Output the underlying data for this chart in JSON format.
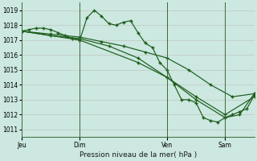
{
  "xlabel": "Pression niveau de la mer( hPa )",
  "bg_color": "#cce8e0",
  "grid_color": "#b8d8d0",
  "line_color": "#1a5c1a",
  "ylim": [
    1010.5,
    1019.5
  ],
  "yticks": [
    1011,
    1012,
    1013,
    1014,
    1015,
    1016,
    1017,
    1018,
    1019
  ],
  "xlim": [
    0,
    96
  ],
  "day_ticks": [
    0,
    24,
    60,
    84
  ],
  "day_labels": [
    "Jeu",
    "Dim",
    "Ven",
    "Sam"
  ],
  "vlines": [
    24,
    60,
    84
  ],
  "line1_x": [
    0,
    3,
    6,
    9,
    12,
    15,
    18,
    21,
    24,
    27,
    30,
    33,
    36,
    39,
    42,
    45,
    48,
    51,
    54,
    57,
    60,
    63,
    66,
    69,
    72,
    75,
    78,
    81,
    84,
    87,
    90,
    93,
    96
  ],
  "line1_y": [
    1017.6,
    1017.7,
    1017.8,
    1017.8,
    1017.7,
    1017.5,
    1017.3,
    1017.1,
    1017.0,
    1018.5,
    1019.0,
    1018.6,
    1018.1,
    1018.0,
    1018.2,
    1018.3,
    1017.5,
    1016.8,
    1016.5,
    1015.5,
    1015.0,
    1014.0,
    1013.0,
    1013.0,
    1012.8,
    1011.8,
    1011.6,
    1011.5,
    1011.8,
    1012.0,
    1012.2,
    1012.4,
    1013.3
  ],
  "line2_x": [
    0,
    12,
    24,
    33,
    42,
    51,
    60,
    69,
    78,
    87,
    96
  ],
  "line2_y": [
    1017.6,
    1017.4,
    1017.2,
    1016.9,
    1016.6,
    1016.2,
    1015.8,
    1015.0,
    1014.0,
    1013.2,
    1013.4
  ],
  "line3_x": [
    0,
    12,
    24,
    36,
    48,
    60,
    72,
    84,
    96
  ],
  "line3_y": [
    1017.6,
    1017.3,
    1017.1,
    1016.6,
    1015.8,
    1014.5,
    1013.2,
    1012.0,
    1013.2
  ],
  "line4_x": [
    0,
    24,
    48,
    60,
    72,
    84,
    90,
    96
  ],
  "line4_y": [
    1017.6,
    1017.0,
    1015.5,
    1014.5,
    1013.0,
    1011.8,
    1012.0,
    1013.4
  ]
}
